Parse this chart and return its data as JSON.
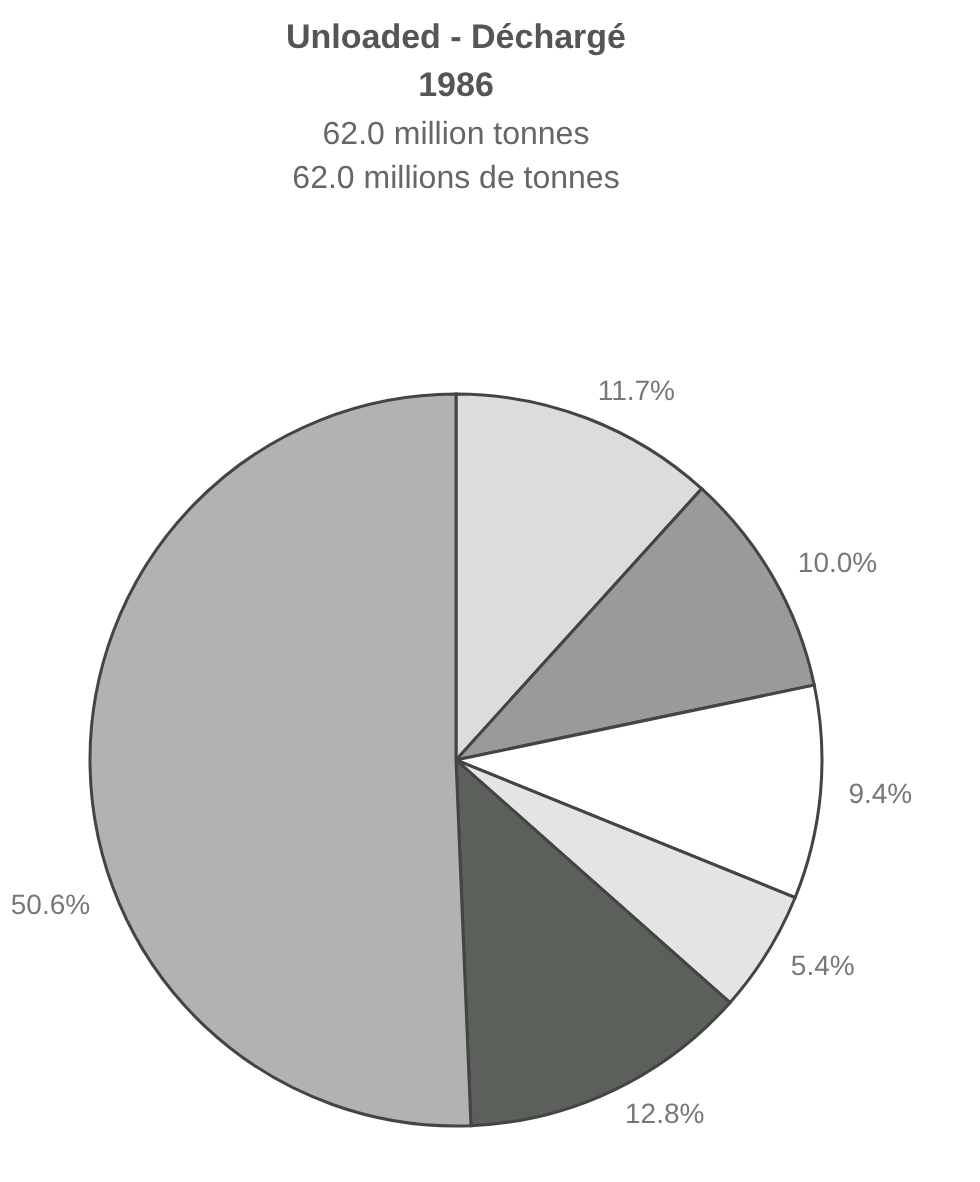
{
  "chart_data": {
    "type": "pie",
    "title": "Unloaded - Déchargé\n1986",
    "subtitle": "62.0 million tonnes\n62.0 millions de tonnes",
    "categories": [
      null,
      null,
      null,
      null,
      null,
      null
    ],
    "values": [
      11.7,
      10.0,
      9.4,
      5.4,
      12.8,
      50.6
    ],
    "value_labels": [
      "11.7%",
      "10.0%",
      "9.4%",
      "5.4%",
      "12.8%",
      "50.6%"
    ],
    "colors": [
      "#dcdcdc",
      "#9a9a9a",
      "#ffffff",
      "#e4e4e4",
      "#5b605a",
      "#b2b2b2"
    ]
  }
}
